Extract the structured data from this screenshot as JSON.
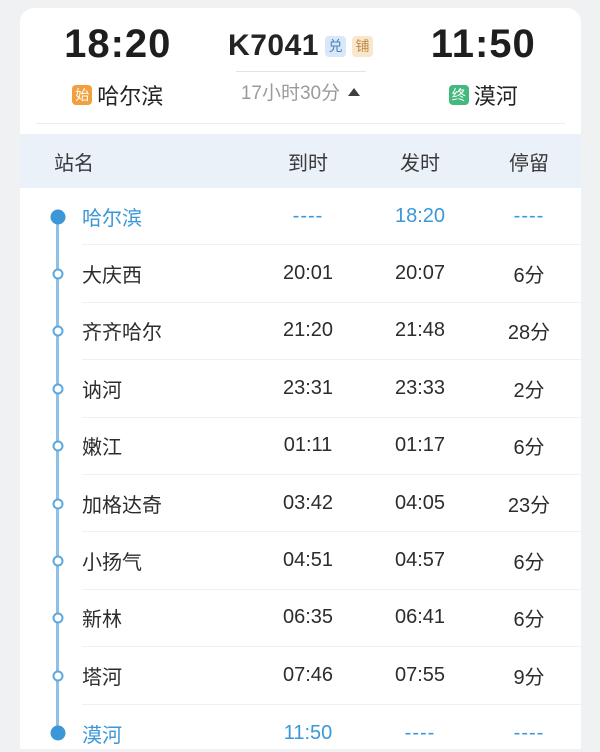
{
  "header": {
    "departure_time": "18:20",
    "train_number": "K7041",
    "badge_exchange": "兑",
    "badge_sleeper": "铺",
    "arrival_time": "11:50",
    "origin_badge": "始",
    "origin": "哈尔滨",
    "duration": "17小时30分",
    "collapse_icon": "triangle-up",
    "destination_badge": "终",
    "destination": "漠河"
  },
  "table": {
    "columns": [
      "站名",
      "到时",
      "发时",
      "停留"
    ],
    "rows": [
      {
        "station": "哈尔滨",
        "arrive": "----",
        "depart": "18:20",
        "stop": "----",
        "type": "origin"
      },
      {
        "station": "大庆西",
        "arrive": "20:01",
        "depart": "20:07",
        "stop": "6分",
        "type": "middle"
      },
      {
        "station": "齐齐哈尔",
        "arrive": "21:20",
        "depart": "21:48",
        "stop": "28分",
        "type": "middle"
      },
      {
        "station": "讷河",
        "arrive": "23:31",
        "depart": "23:33",
        "stop": "2分",
        "type": "middle"
      },
      {
        "station": "嫩江",
        "arrive": "01:11",
        "depart": "01:17",
        "stop": "6分",
        "type": "middle"
      },
      {
        "station": "加格达奇",
        "arrive": "03:42",
        "depart": "04:05",
        "stop": "23分",
        "type": "middle"
      },
      {
        "station": "小扬气",
        "arrive": "04:51",
        "depart": "04:57",
        "stop": "6分",
        "type": "middle"
      },
      {
        "station": "新林",
        "arrive": "06:35",
        "depart": "06:41",
        "stop": "6分",
        "type": "middle"
      },
      {
        "station": "塔河",
        "arrive": "07:46",
        "depart": "07:55",
        "stop": "9分",
        "type": "middle"
      },
      {
        "station": "漠河",
        "arrive": "11:50",
        "depart": "----",
        "stop": "----",
        "type": "terminal"
      }
    ]
  },
  "colors": {
    "accent_blue": "#3b97d7",
    "timeline_line": "#8fc0e8",
    "origin_badge_bg": "#f0a13e",
    "terminal_badge_bg": "#43b97d",
    "exchange_badge_bg": "#d8e8f8",
    "exchange_badge_text": "#4d7fba",
    "sleeper_badge_bg": "#f8e7cd",
    "sleeper_badge_text": "#c68a4a",
    "table_header_bg": "#ebf1f9",
    "page_bg": "#f0f1f3"
  }
}
